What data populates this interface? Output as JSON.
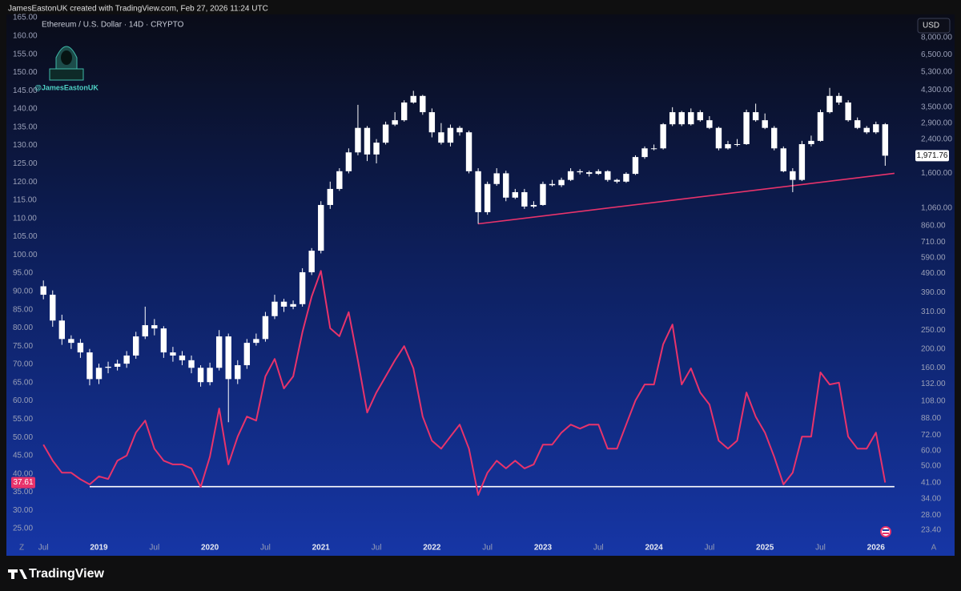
{
  "chart_data": {
    "type": "candlestick",
    "credit": "JamesEastonUK created with TradingView.com, Feb 27, 2026 11:24 UTC",
    "title": "Ethereum / U.S. Dollar · 14D · CRYPTO",
    "watermark": "@JamesEastonUK",
    "currency": "USD",
    "brand": "TradingView",
    "scale_buttons": [
      "Z",
      "A"
    ],
    "x": [
      "2018-07",
      "2018-08",
      "2018-09",
      "2018-10",
      "2018-11",
      "2018-12",
      "2019-01",
      "2019-02",
      "2019-03",
      "2019-04",
      "2019-05",
      "2019-06",
      "2019-07",
      "2019-08",
      "2019-09",
      "2019-10",
      "2019-11",
      "2019-12",
      "2020-01",
      "2020-02",
      "2020-03",
      "2020-04",
      "2020-05",
      "2020-06",
      "2020-07",
      "2020-08",
      "2020-09",
      "2020-10",
      "2020-11",
      "2020-12",
      "2021-01",
      "2021-02",
      "2021-03",
      "2021-04",
      "2021-05",
      "2021-06",
      "2021-07",
      "2021-08",
      "2021-09",
      "2021-10",
      "2021-11",
      "2021-12",
      "2022-01",
      "2022-02",
      "2022-03",
      "2022-04",
      "2022-05",
      "2022-06",
      "2022-07",
      "2022-08",
      "2022-09",
      "2022-10",
      "2022-11",
      "2022-12",
      "2023-01",
      "2023-02",
      "2023-03",
      "2023-04",
      "2023-05",
      "2023-06",
      "2023-07",
      "2023-08",
      "2023-09",
      "2023-10",
      "2023-11",
      "2023-12",
      "2024-01",
      "2024-02",
      "2024-03",
      "2024-04",
      "2024-05",
      "2024-06",
      "2024-07",
      "2024-08",
      "2024-09",
      "2024-10",
      "2024-11",
      "2024-12",
      "2025-01",
      "2025-02",
      "2025-03",
      "2025-04",
      "2025-05",
      "2025-06",
      "2025-07",
      "2025-08",
      "2025-09",
      "2025-10",
      "2025-11",
      "2025-12",
      "2026-01",
      "2026-02"
    ],
    "xlim": [
      "2018-03",
      "2026-05"
    ],
    "xticks": [
      {
        "value": "2018-07",
        "label": "Jul"
      },
      {
        "value": "2019-01",
        "label": "2019"
      },
      {
        "value": "2019-07",
        "label": "Jul"
      },
      {
        "value": "2020-01",
        "label": "2020"
      },
      {
        "value": "2020-07",
        "label": "Jul"
      },
      {
        "value": "2021-01",
        "label": "2021"
      },
      {
        "value": "2021-07",
        "label": "Jul"
      },
      {
        "value": "2022-01",
        "label": "2022"
      },
      {
        "value": "2022-07",
        "label": "Jul"
      },
      {
        "value": "2023-01",
        "label": "2023"
      },
      {
        "value": "2023-07",
        "label": "Jul"
      },
      {
        "value": "2024-01",
        "label": "2024"
      },
      {
        "value": "2024-07",
        "label": "Jul"
      },
      {
        "value": "2025-01",
        "label": "2025"
      },
      {
        "value": "2025-07",
        "label": "Jul"
      },
      {
        "value": "2026-01",
        "label": "2026"
      }
    ],
    "ylim": [
      21.5,
      165.9
    ],
    "yticks": [
      {
        "value": 25,
        "label": "25.00"
      },
      {
        "value": 30,
        "label": "30.00"
      },
      {
        "value": 35,
        "label": "35.00"
      },
      {
        "value": 40,
        "label": "40.00"
      },
      {
        "value": 45,
        "label": "45.00"
      },
      {
        "value": 50,
        "label": "50.00"
      },
      {
        "value": 55,
        "label": "55.00"
      },
      {
        "value": 60,
        "label": "60.00"
      },
      {
        "value": 65,
        "label": "65.00"
      },
      {
        "value": 70,
        "label": "70.00"
      },
      {
        "value": 75,
        "label": "75.00"
      },
      {
        "value": 80,
        "label": "80.00"
      },
      {
        "value": 85,
        "label": "85.00"
      },
      {
        "value": 90,
        "label": "90.00"
      },
      {
        "value": 95,
        "label": "95.00"
      },
      {
        "value": 100,
        "label": "100.00"
      },
      {
        "value": 105,
        "label": "105.00"
      },
      {
        "value": 110,
        "label": "110.00"
      },
      {
        "value": 115,
        "label": "115.00"
      },
      {
        "value": 120,
        "label": "120.00"
      },
      {
        "value": 125,
        "label": "125.00"
      },
      {
        "value": 130,
        "label": "130.00"
      },
      {
        "value": 135,
        "label": "135.00"
      },
      {
        "value": 140,
        "label": "140.00"
      },
      {
        "value": 145,
        "label": "145.00"
      },
      {
        "value": 150,
        "label": "150.00"
      },
      {
        "value": 155,
        "label": "155.00"
      },
      {
        "value": 160,
        "label": "160.00"
      },
      {
        "value": 165,
        "label": "165.00"
      }
    ],
    "y2lim": [
      20.5,
      10500
    ],
    "y2log": true,
    "y2ticks": [
      {
        "value": 8000,
        "label": "8,000.00"
      },
      {
        "value": 6500,
        "label": "6,500.00"
      },
      {
        "value": 5300,
        "label": "5,300.00"
      },
      {
        "value": 4300,
        "label": "4,300.00"
      },
      {
        "value": 3500,
        "label": "3,500.00"
      },
      {
        "value": 2900,
        "label": "2,900.00"
      },
      {
        "value": 2400,
        "label": "2,400.00"
      },
      {
        "value": 1600,
        "label": "1,600.00"
      },
      {
        "value": 1060,
        "label": "1,060.00"
      },
      {
        "value": 860,
        "label": "860.00"
      },
      {
        "value": 710,
        "label": "710.00"
      },
      {
        "value": 590,
        "label": "590.00"
      },
      {
        "value": 490,
        "label": "490.00"
      },
      {
        "value": 390,
        "label": "390.00"
      },
      {
        "value": 310,
        "label": "310.00"
      },
      {
        "value": 250,
        "label": "250.00"
      },
      {
        "value": 200,
        "label": "200.00"
      },
      {
        "value": 160,
        "label": "160.00"
      },
      {
        "value": 132,
        "label": "132.00"
      },
      {
        "value": 108,
        "label": "108.00"
      },
      {
        "value": 88,
        "label": "88.00"
      },
      {
        "value": 72,
        "label": "72.00"
      },
      {
        "value": 60,
        "label": "60.00"
      },
      {
        "value": 50,
        "label": "50.00"
      },
      {
        "value": 41,
        "label": "41.00"
      },
      {
        "value": 34,
        "label": "34.00"
      },
      {
        "value": 28,
        "label": "28.00"
      },
      {
        "value": 23.4,
        "label": "23.40"
      }
    ],
    "grid": false,
    "last_price_label": "1,971.76",
    "series": [
      {
        "type": "candlestick",
        "axis": "y2",
        "color": "#ffffff",
        "ohlc": [
          [
            420,
            450,
            360,
            380
          ],
          [
            380,
            400,
            260,
            280
          ],
          [
            280,
            300,
            210,
            225
          ],
          [
            225,
            235,
            200,
            215
          ],
          [
            215,
            225,
            180,
            192
          ],
          [
            192,
            200,
            130,
            140
          ],
          [
            140,
            168,
            132,
            160
          ],
          [
            160,
            172,
            150,
            162
          ],
          [
            162,
            176,
            155,
            168
          ],
          [
            168,
            195,
            160,
            185
          ],
          [
            185,
            245,
            178,
            232
          ],
          [
            232,
            330,
            225,
            265
          ],
          [
            265,
            285,
            235,
            255
          ],
          [
            255,
            262,
            180,
            192
          ],
          [
            192,
            205,
            172,
            185
          ],
          [
            185,
            195,
            165,
            175
          ],
          [
            175,
            185,
            150,
            160
          ],
          [
            160,
            165,
            128,
            135
          ],
          [
            135,
            170,
            130,
            160
          ],
          [
            160,
            250,
            155,
            232
          ],
          [
            232,
            240,
            84,
            140
          ],
          [
            140,
            175,
            132,
            165
          ],
          [
            165,
            225,
            158,
            215
          ],
          [
            215,
            240,
            208,
            225
          ],
          [
            225,
            310,
            218,
            295
          ],
          [
            295,
            380,
            285,
            350
          ],
          [
            350,
            362,
            310,
            330
          ],
          [
            330,
            355,
            320,
            340
          ],
          [
            340,
            520,
            330,
            496
          ],
          [
            496,
            660,
            480,
            640
          ],
          [
            640,
            1150,
            620,
            1100
          ],
          [
            1100,
            1450,
            1050,
            1330
          ],
          [
            1330,
            1700,
            1300,
            1640
          ],
          [
            1640,
            2150,
            1600,
            2050
          ],
          [
            2050,
            3600,
            1980,
            2740
          ],
          [
            2740,
            2800,
            1850,
            2000
          ],
          [
            2000,
            2400,
            1800,
            2300
          ],
          [
            2300,
            2950,
            2250,
            2850
          ],
          [
            2850,
            3300,
            2800,
            3000
          ],
          [
            3000,
            3800,
            2950,
            3700
          ],
          [
            3700,
            4250,
            3650,
            4000
          ],
          [
            4000,
            4050,
            3200,
            3300
          ],
          [
            3300,
            3450,
            2450,
            2600
          ],
          [
            2600,
            2900,
            2250,
            2300
          ],
          [
            2300,
            2850,
            2200,
            2740
          ],
          [
            2740,
            2800,
            2500,
            2600
          ],
          [
            2600,
            2650,
            1600,
            1640
          ],
          [
            1640,
            1700,
            880,
            1010
          ],
          [
            1010,
            1450,
            980,
            1410
          ],
          [
            1410,
            1700,
            1380,
            1600
          ],
          [
            1600,
            1650,
            1150,
            1200
          ],
          [
            1200,
            1330,
            1180,
            1280
          ],
          [
            1280,
            1330,
            1050,
            1080
          ],
          [
            1080,
            1150,
            1060,
            1100
          ],
          [
            1100,
            1450,
            1090,
            1410
          ],
          [
            1410,
            1480,
            1370,
            1390
          ],
          [
            1390,
            1520,
            1360,
            1480
          ],
          [
            1480,
            1700,
            1460,
            1640
          ],
          [
            1640,
            1680,
            1580,
            1620
          ],
          [
            1620,
            1650,
            1540,
            1590
          ],
          [
            1590,
            1680,
            1570,
            1640
          ],
          [
            1640,
            1660,
            1450,
            1480
          ],
          [
            1480,
            1500,
            1420,
            1450
          ],
          [
            1450,
            1620,
            1430,
            1590
          ],
          [
            1590,
            1980,
            1570,
            1940
          ],
          [
            1940,
            2200,
            1900,
            2150
          ],
          [
            2150,
            2250,
            2100,
            2150
          ],
          [
            2150,
            2900,
            2120,
            2860
          ],
          [
            2860,
            3500,
            2800,
            3300
          ],
          [
            3300,
            3350,
            2800,
            2860
          ],
          [
            2860,
            3450,
            2820,
            3300
          ],
          [
            3300,
            3380,
            2950,
            3000
          ],
          [
            3000,
            3150,
            2700,
            2740
          ],
          [
            2740,
            2780,
            2100,
            2150
          ],
          [
            2150,
            2350,
            2120,
            2260
          ],
          [
            2260,
            2400,
            2200,
            2260
          ],
          [
            2260,
            3400,
            2240,
            3300
          ],
          [
            3300,
            3650,
            2950,
            3000
          ],
          [
            3000,
            3250,
            2700,
            2740
          ],
          [
            2740,
            2800,
            2100,
            2150
          ],
          [
            2150,
            2200,
            1620,
            1640
          ],
          [
            1640,
            1700,
            1280,
            1480
          ],
          [
            1480,
            2350,
            1460,
            2260
          ],
          [
            2260,
            2500,
            2200,
            2350
          ],
          [
            2350,
            3400,
            2330,
            3300
          ],
          [
            3300,
            4400,
            3250,
            4000
          ],
          [
            4000,
            4150,
            3600,
            3700
          ],
          [
            3700,
            3800,
            2950,
            3000
          ],
          [
            3000,
            3100,
            2700,
            2740
          ],
          [
            2740,
            2800,
            2550,
            2600
          ],
          [
            2600,
            2950,
            2550,
            2860
          ],
          [
            2860,
            2900,
            1750,
            1971.76
          ]
        ]
      },
      {
        "type": "line",
        "axis": "y",
        "color": "#e8336b",
        "values": [
          48.0,
          43.6,
          40.3,
          40.3,
          38.5,
          37.1,
          39.3,
          38.6,
          43.6,
          45.0,
          51.3,
          54.6,
          46.9,
          43.6,
          42.6,
          42.6,
          41.5,
          36.4,
          44.7,
          57.9,
          42.6,
          50.2,
          55.7,
          54.6,
          66.7,
          71.5,
          63.4,
          66.7,
          78.8,
          88.6,
          95.6,
          79.9,
          77.7,
          84.3,
          71.1,
          56.8,
          62.3,
          66.7,
          71.1,
          75.0,
          68.9,
          55.7,
          49.1,
          46.9,
          50.2,
          53.5,
          46.9,
          34.2,
          40.3,
          43.6,
          41.5,
          43.6,
          41.5,
          42.6,
          48.0,
          48.0,
          51.3,
          53.5,
          52.4,
          53.5,
          53.5,
          46.9,
          46.9,
          53.5,
          60.1,
          64.5,
          64.5,
          75.5,
          80.9,
          64.5,
          68.9,
          62.3,
          59.0,
          49.1,
          46.9,
          49.1,
          62.3,
          55.7,
          51.3,
          44.7,
          37.1,
          40.3,
          50.2,
          50.2,
          67.8,
          64.5,
          65.0,
          50.2,
          46.9,
          46.9,
          51.3,
          37.61
        ]
      }
    ],
    "trendlines": [
      {
        "axis": "y2",
        "color": "#e8336b",
        "x": [
          "2022-06",
          "2026-03"
        ],
        "y": [
          880,
          1600
        ]
      },
      {
        "axis": "y",
        "color": "#ffffff",
        "x": [
          "2018-12",
          "2026-03"
        ],
        "y": [
          36.5,
          36.5
        ]
      }
    ]
  }
}
